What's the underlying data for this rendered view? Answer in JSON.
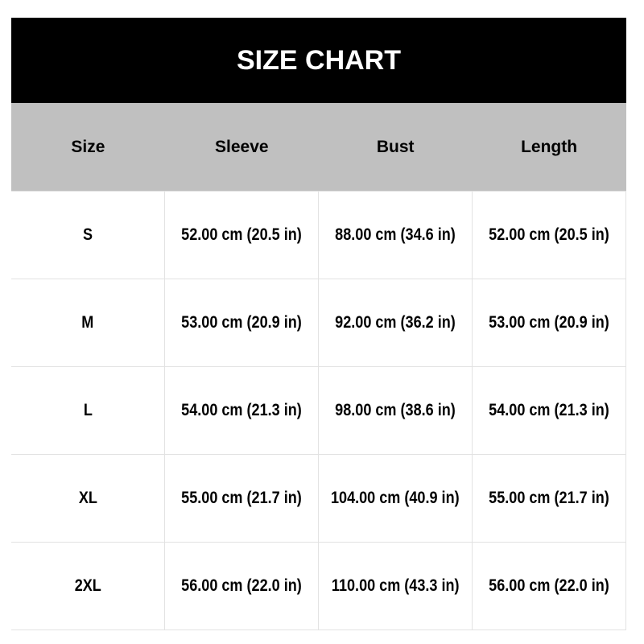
{
  "title": "SIZE CHART",
  "headers": [
    "Size",
    "Sleeve",
    "Bust",
    "Length"
  ],
  "rows": [
    [
      "S",
      "52.00 cm (20.5 in)",
      "88.00 cm (34.6 in)",
      "52.00 cm (20.5 in)"
    ],
    [
      "M",
      "53.00 cm (20.9 in)",
      "92.00 cm (36.2 in)",
      "53.00 cm (20.9 in)"
    ],
    [
      "L",
      "54.00 cm (21.3 in)",
      "98.00 cm (38.6 in)",
      "54.00 cm (21.3 in)"
    ],
    [
      "XL",
      "55.00 cm (21.7 in)",
      "104.00 cm (40.9 in)",
      "55.00 cm (21.7 in)"
    ],
    [
      "2XL",
      "56.00 cm (22.0 in)",
      "110.00 cm (43.3 in)",
      "56.00 cm (22.0 in)"
    ]
  ],
  "colors": {
    "title_bg": "#000000",
    "header_bg": "#c0c0c0",
    "border": "#e2e2e2"
  }
}
